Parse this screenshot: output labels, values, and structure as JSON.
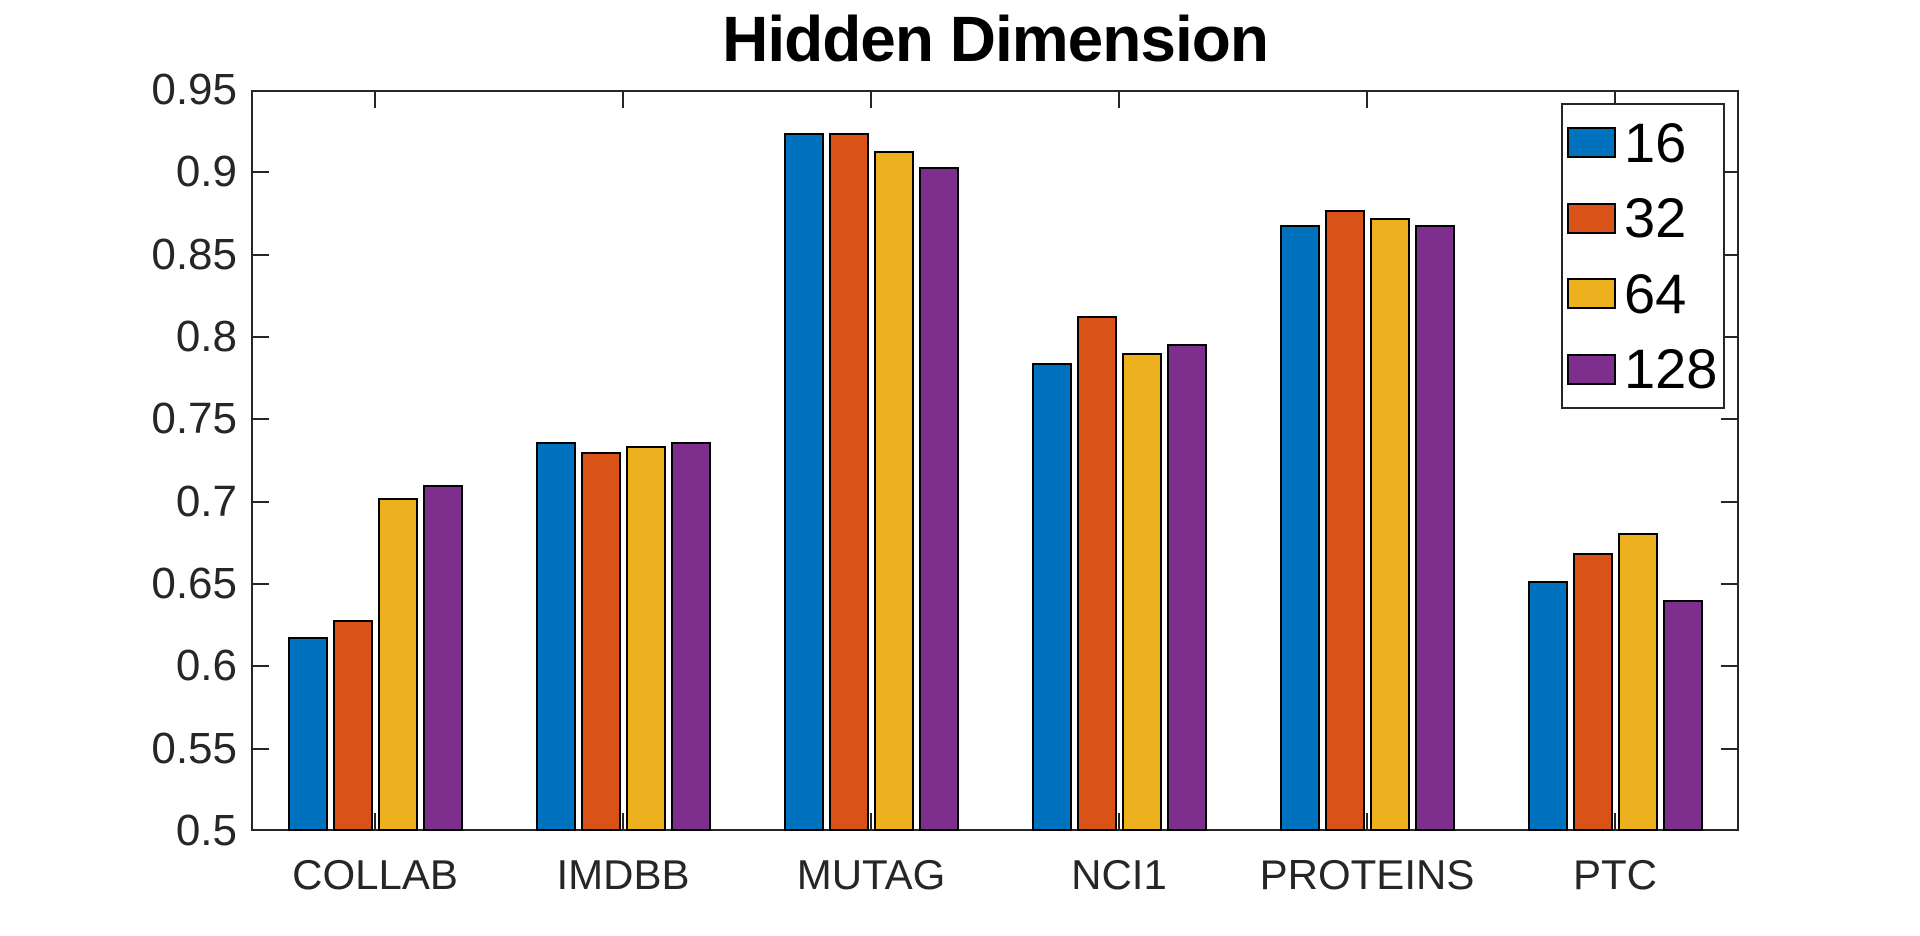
{
  "chart_data": {
    "type": "bar",
    "title": "Hidden Dimension",
    "categories": [
      "COLLAB",
      "IMDBB",
      "MUTAG",
      "NCI1",
      "PROTEINS",
      "PTC"
    ],
    "series": [
      {
        "name": "16",
        "color": "#0072BD",
        "values": [
          0.618,
          0.736,
          0.924,
          0.784,
          0.868,
          0.652
        ]
      },
      {
        "name": "32",
        "color": "#D95319",
        "values": [
          0.628,
          0.73,
          0.924,
          0.813,
          0.877,
          0.669
        ]
      },
      {
        "name": "64",
        "color": "#EDB120",
        "values": [
          0.702,
          0.734,
          0.913,
          0.79,
          0.872,
          0.681
        ]
      },
      {
        "name": "128",
        "color": "#7E2F8E",
        "values": [
          0.71,
          0.736,
          0.903,
          0.796,
          0.868,
          0.64
        ]
      }
    ],
    "ylim": [
      0.5,
      0.95
    ],
    "ytick_step": 0.05,
    "ytick_labels": [
      "0.5",
      "0.55",
      "0.6",
      "0.65",
      "0.7",
      "0.75",
      "0.8",
      "0.85",
      "0.9",
      "0.95"
    ],
    "xlabel": "",
    "ylabel": "",
    "grid": false,
    "legend_position": "top-right",
    "axis_color": "#262626",
    "bar_edge_color": "#000000",
    "background": "#ffffff"
  }
}
